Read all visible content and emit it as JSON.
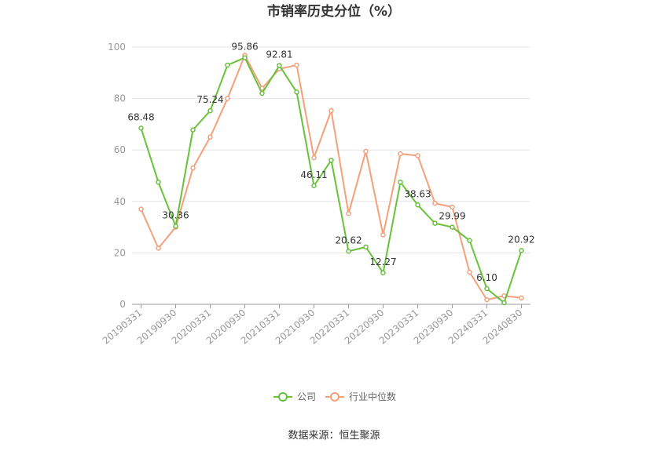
{
  "chart_data": {
    "type": "line",
    "title": "市销率历史分位（%）",
    "ylim": [
      0,
      100
    ],
    "yticks": [
      0,
      20,
      40,
      60,
      80,
      100
    ],
    "x": [
      "20190331",
      "20190630",
      "20190930",
      "20191231",
      "20200331",
      "20200630",
      "20200930",
      "20201231",
      "20210331",
      "20210630",
      "20210930",
      "20211231",
      "20220331",
      "20220630",
      "20220930",
      "20221231",
      "20230331",
      "20230630",
      "20230930",
      "20231231",
      "20240331",
      "20240630",
      "20240830"
    ],
    "xticks": [
      "20190331",
      "20190930",
      "20200331",
      "20200930",
      "20210331",
      "20210930",
      "20220331",
      "20220930",
      "20230331",
      "20230930",
      "20240331",
      "20240830"
    ],
    "series": [
      {
        "name": "公司",
        "color": "#67c23a",
        "values": [
          68.48,
          47.5,
          30.36,
          67.8,
          75.24,
          93.0,
          95.86,
          82.0,
          92.81,
          82.5,
          46.11,
          56.0,
          20.62,
          22.3,
          12.27,
          47.5,
          38.63,
          31.5,
          29.99,
          24.8,
          6.1,
          0.6,
          20.92
        ],
        "labels": {
          "0": "68.48",
          "2": "30.36",
          "4": "75.24",
          "6": "95.86",
          "8": "92.81",
          "10": "46.11",
          "12": "20.62",
          "14": "12.27",
          "16": "38.63",
          "18": "29.99",
          "20": "6.10",
          "22": "20.92"
        }
      },
      {
        "name": "行业中位数",
        "color": "#f4a07a",
        "values": [
          37.0,
          21.8,
          30.0,
          53.0,
          65.0,
          80.0,
          96.8,
          84.0,
          91.5,
          93.0,
          57.0,
          75.3,
          35.3,
          59.5,
          27.0,
          58.5,
          57.8,
          39.3,
          37.8,
          12.5,
          1.8,
          3.3,
          2.5
        ]
      }
    ],
    "legend_position": "bottom",
    "grid": true
  },
  "source": "数据来源：恒生聚源"
}
